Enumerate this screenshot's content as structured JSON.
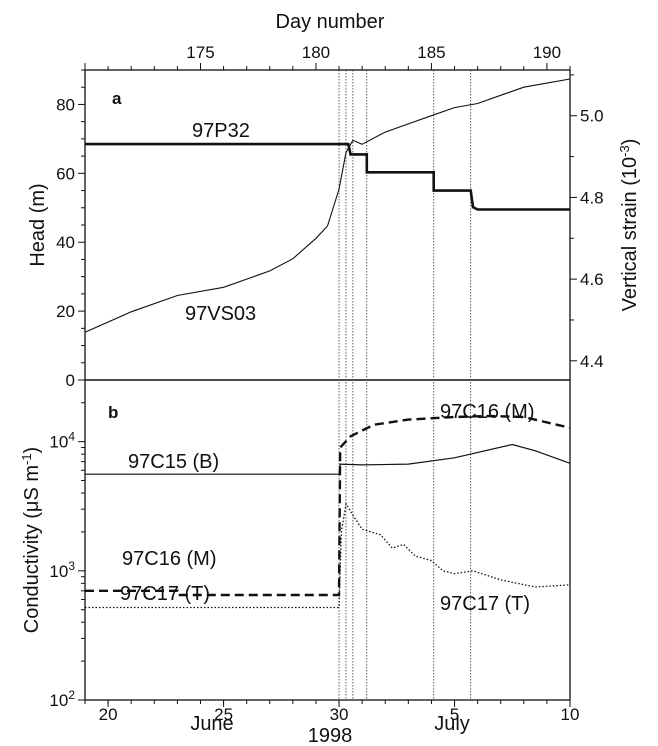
{
  "chart_data": [
    {
      "panel_label": "a",
      "type": "line",
      "top_axis": {
        "label": "Day number",
        "range": [
          170,
          191
        ],
        "ticks": [
          "175",
          "180",
          "185",
          "190"
        ]
      },
      "y_left": {
        "label": "Head (m)",
        "range": [
          0,
          90
        ],
        "ticks": [
          "0",
          "20",
          "40",
          "60",
          "80"
        ]
      },
      "y_right": {
        "label_main": "Vertical strain (10",
        "label_sup": "-3",
        "label_end": ")",
        "range": [
          4.353,
          5.112
        ],
        "ticks": [
          "4.4",
          "4.6",
          "4.8",
          "5.0"
        ]
      },
      "event_days": [
        181.0,
        181.3,
        181.6,
        182.2,
        185.1,
        186.7
      ],
      "series": [
        {
          "name": "97P32",
          "axis": "left",
          "style": "thick",
          "points": [
            [
              170.0,
              68.5
            ],
            [
              181.4,
              68.5
            ],
            [
              181.5,
              65.5
            ],
            [
              182.2,
              65.5
            ],
            [
              182.2,
              60.3
            ],
            [
              185.1,
              60.3
            ],
            [
              185.1,
              55.0
            ],
            [
              186.7,
              55.0
            ],
            [
              186.8,
              50.2
            ],
            [
              187.0,
              49.5
            ],
            [
              191.0,
              49.5
            ]
          ]
        },
        {
          "name": "97VS03",
          "axis": "right",
          "style": "thin",
          "points": [
            [
              170.0,
              4.47
            ],
            [
              172.0,
              4.52
            ],
            [
              174.0,
              4.56
            ],
            [
              176.0,
              4.58
            ],
            [
              178.0,
              4.62
            ],
            [
              179.0,
              4.65
            ],
            [
              180.0,
              4.7
            ],
            [
              180.5,
              4.73
            ],
            [
              181.0,
              4.82
            ],
            [
              181.3,
              4.91
            ],
            [
              181.6,
              4.94
            ],
            [
              182.0,
              4.93
            ],
            [
              183.0,
              4.96
            ],
            [
              184.0,
              4.98
            ],
            [
              185.0,
              5.0
            ],
            [
              186.0,
              5.02
            ],
            [
              187.0,
              5.03
            ],
            [
              188.0,
              5.05
            ],
            [
              189.0,
              5.07
            ],
            [
              190.0,
              5.08
            ],
            [
              191.0,
              5.09
            ]
          ]
        }
      ]
    },
    {
      "panel_label": "b",
      "type": "line",
      "y_scale": "log",
      "y_left": {
        "label_main": "Conductivity (μS m",
        "label_sup": "-1",
        "label_end": ")",
        "range": [
          100,
          30000
        ],
        "ticks": [
          {
            "base": "10",
            "exp": "2"
          },
          {
            "base": "10",
            "exp": "3"
          },
          {
            "base": "10",
            "exp": "4"
          }
        ]
      },
      "x_axis": {
        "range_day": [
          170,
          191
        ],
        "ticks": [
          "20",
          "25",
          "30",
          "5",
          "10"
        ],
        "tick_days": [
          171,
          176,
          181,
          186,
          191
        ],
        "months": [
          "June",
          "July"
        ],
        "year": "1998"
      },
      "series": [
        {
          "name": "97C15 (B)",
          "style": "solid-thin",
          "points": [
            [
              170.0,
              5600
            ],
            [
              181.0,
              5600
            ],
            [
              181.05,
              6700
            ],
            [
              182.0,
              6600
            ],
            [
              184.0,
              6700
            ],
            [
              186.0,
              7500
            ],
            [
              188.5,
              9500
            ],
            [
              189.5,
              8500
            ],
            [
              191.0,
              6800
            ]
          ]
        },
        {
          "name": "97C16 (M)",
          "style": "dashed-thick",
          "points": [
            [
              170.0,
              700
            ],
            [
              174.0,
              700
            ],
            [
              174.0,
              650
            ],
            [
              181.0,
              650
            ],
            [
              181.05,
              9000
            ],
            [
              181.5,
              11000
            ],
            [
              182.5,
              13500
            ],
            [
              184.0,
              14800
            ],
            [
              186.0,
              15500
            ],
            [
              187.5,
              15800
            ],
            [
              189.0,
              15500
            ],
            [
              191.0,
              12800
            ]
          ]
        },
        {
          "name": "97C17 (T)",
          "style": "dotted",
          "points": [
            [
              170.0,
              520
            ],
            [
              181.0,
              520
            ],
            [
              181.1,
              2000
            ],
            [
              181.3,
              3300
            ],
            [
              181.6,
              2700
            ],
            [
              182.0,
              2100
            ],
            [
              182.8,
              1900
            ],
            [
              183.3,
              1500
            ],
            [
              183.8,
              1600
            ],
            [
              184.3,
              1300
            ],
            [
              185.0,
              1200
            ],
            [
              185.5,
              1000
            ],
            [
              186.0,
              950
            ],
            [
              186.8,
              1000
            ],
            [
              188.0,
              850
            ],
            [
              189.5,
              750
            ],
            [
              191.0,
              780
            ]
          ]
        }
      ]
    }
  ]
}
